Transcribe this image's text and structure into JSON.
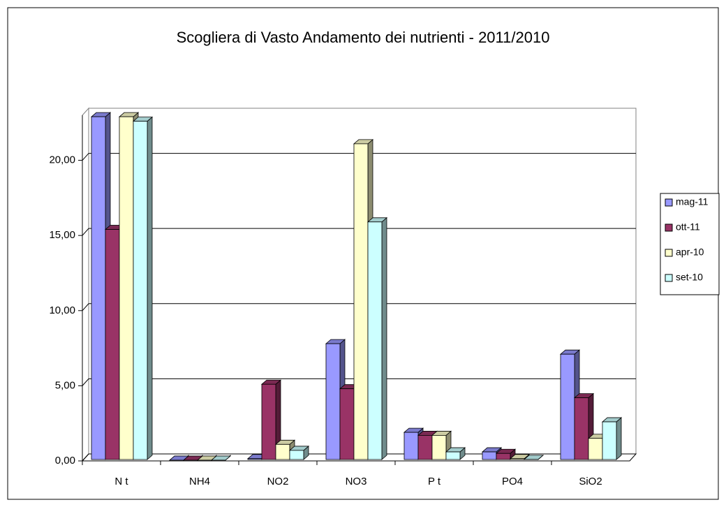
{
  "chart_data": {
    "type": "bar3d",
    "title": "Scogliera di Vasto Andamento dei nutrienti -  2011/2010",
    "categories": [
      "N t",
      "NH4",
      "NO2",
      "NO3",
      "P t",
      "PO4",
      "SiO2"
    ],
    "series": [
      {
        "name": "mag-11",
        "color": "#9999ff",
        "values": [
          22.9,
          0.05,
          0.15,
          7.8,
          1.9,
          0.6,
          7.1
        ]
      },
      {
        "name": "ott-11",
        "color": "#993366",
        "values": [
          15.4,
          0.05,
          5.1,
          4.8,
          1.7,
          0.5,
          4.2
        ]
      },
      {
        "name": "apr-10",
        "color": "#ffffcc",
        "values": [
          22.9,
          0.05,
          1.1,
          21.1,
          1.7,
          0.15,
          1.5
        ]
      },
      {
        "name": "set-10",
        "color": "#ccffff",
        "values": [
          22.6,
          0.05,
          0.7,
          15.9,
          0.6,
          0.1,
          2.6
        ]
      }
    ],
    "ylim": [
      0,
      23
    ],
    "yticks": [
      {
        "value": 0,
        "label": "0,00"
      },
      {
        "value": 5,
        "label": "5,00"
      },
      {
        "value": 10,
        "label": "10,00"
      },
      {
        "value": 15,
        "label": "15,00"
      },
      {
        "value": 20,
        "label": "20,00"
      }
    ],
    "grid": true,
    "legend": "right"
  }
}
